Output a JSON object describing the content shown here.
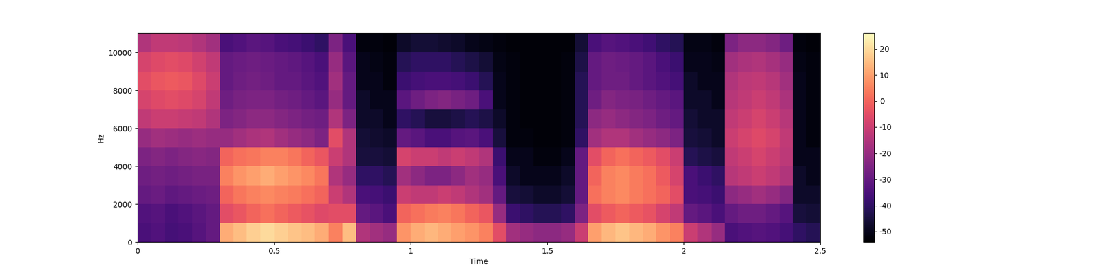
{
  "chart_data": {
    "type": "spectrogram",
    "x_label": "Time",
    "y_label": "Hz",
    "xlim": [
      0,
      2.5
    ],
    "xticks": [
      0,
      0.5,
      1,
      1.5,
      2,
      2.5
    ],
    "ylim": [
      0,
      11025
    ],
    "yticks": [
      0,
      2000,
      4000,
      6000,
      8000,
      10000
    ],
    "time_edges": [
      0,
      0.05,
      0.1,
      0.15,
      0.2,
      0.25,
      0.3,
      0.35,
      0.4,
      0.45,
      0.5,
      0.55,
      0.6,
      0.65,
      0.7,
      0.75,
      0.8,
      0.85,
      0.9,
      0.95,
      1,
      1.05,
      1.1,
      1.15,
      1.2,
      1.25,
      1.3,
      1.35,
      1.4,
      1.45,
      1.5,
      1.55,
      1.6,
      1.65,
      1.7,
      1.75,
      1.8,
      1.85,
      1.9,
      1.95,
      2,
      2.05,
      2.1,
      2.15,
      2.2,
      2.25,
      2.3,
      2.35,
      2.4,
      2.45,
      2.5
    ],
    "freq_edges": [
      0,
      1000,
      2000,
      3000,
      4000,
      5000,
      6000,
      7000,
      8000,
      9000,
      10000,
      11025
    ],
    "cells": [
      [
        -35,
        -34,
        -36,
        -35,
        -33,
        -30,
        12,
        15,
        18,
        20,
        18,
        16,
        15,
        12,
        5,
        15,
        -15,
        -18,
        -20,
        8,
        12,
        14,
        12,
        10,
        8,
        5,
        -5,
        -18,
        -20,
        -22,
        -22,
        -20,
        -10,
        10,
        14,
        16,
        14,
        12,
        8,
        5,
        -10,
        -15,
        -20,
        -35,
        -34,
        -33,
        -34,
        -36,
        -40,
        -42
      ],
      [
        -34,
        -33,
        -35,
        -34,
        -32,
        -30,
        -5,
        -3,
        0,
        2,
        0,
        -2,
        -4,
        -6,
        -5,
        -5,
        -30,
        -32,
        -35,
        0,
        2,
        4,
        5,
        3,
        0,
        -3,
        -20,
        -38,
        -40,
        -42,
        -42,
        -40,
        -25,
        -5,
        -2,
        0,
        -2,
        -4,
        -8,
        -12,
        -30,
        -32,
        -35,
        -30,
        -28,
        -28,
        -30,
        -33,
        -45,
        -46
      ],
      [
        -30,
        -29,
        -31,
        -30,
        -29,
        -28,
        0,
        3,
        5,
        6,
        5,
        4,
        2,
        0,
        -10,
        -15,
        -35,
        -36,
        -38,
        -10,
        -12,
        -12,
        -10,
        -12,
        -15,
        -18,
        -30,
        -45,
        -46,
        -48,
        -48,
        -46,
        -30,
        2,
        5,
        6,
        4,
        2,
        0,
        -5,
        -35,
        -36,
        -38,
        -22,
        -20,
        -18,
        -20,
        -24,
        -48,
        -48
      ],
      [
        -28,
        -27,
        -28,
        -27,
        -26,
        -26,
        5,
        8,
        10,
        12,
        10,
        8,
        6,
        3,
        -15,
        -20,
        -40,
        -40,
        -42,
        -18,
        -22,
        -25,
        -25,
        -22,
        -18,
        -20,
        -35,
        -48,
        -50,
        -50,
        -50,
        -48,
        -30,
        0,
        5,
        6,
        4,
        2,
        -2,
        -8,
        -35,
        -38,
        -40,
        -14,
        -12,
        -10,
        -12,
        -15,
        -48,
        -50
      ],
      [
        -25,
        -24,
        -25,
        -24,
        -23,
        -24,
        0,
        2,
        3,
        5,
        5,
        3,
        0,
        -3,
        -10,
        -15,
        -45,
        -45,
        -46,
        -8,
        -10,
        -10,
        -12,
        -10,
        -12,
        -15,
        -38,
        -50,
        -50,
        -52,
        -52,
        -50,
        -30,
        -5,
        0,
        2,
        0,
        -2,
        -5,
        -10,
        -42,
        -44,
        -45,
        -12,
        -10,
        -8,
        -10,
        -13,
        -50,
        -50
      ],
      [
        -20,
        -18,
        -19,
        -20,
        -19,
        -20,
        -20,
        -18,
        -16,
        -15,
        -18,
        -20,
        -22,
        -25,
        -5,
        -15,
        -46,
        -47,
        -48,
        -30,
        -32,
        -35,
        -35,
        -33,
        -32,
        -35,
        -45,
        -52,
        -52,
        -53,
        -53,
        -52,
        -40,
        -18,
        -15,
        -15,
        -18,
        -20,
        -22,
        -25,
        -45,
        -46,
        -48,
        -10,
        -8,
        -6,
        -8,
        -12,
        -50,
        -52
      ],
      [
        -12,
        -10,
        -10,
        -11,
        -12,
        -15,
        -25,
        -24,
        -22,
        -22,
        -24,
        -25,
        -27,
        -28,
        -15,
        -25,
        -48,
        -48,
        -50,
        -40,
        -42,
        -45,
        -45,
        -44,
        -42,
        -44,
        -48,
        -52,
        -53,
        -53,
        -53,
        -52,
        -42,
        -22,
        -20,
        -22,
        -24,
        -25,
        -28,
        -30,
        -46,
        -48,
        -48,
        -12,
        -10,
        -8,
        -10,
        -14,
        -50,
        -52
      ],
      [
        -8,
        -6,
        -5,
        -6,
        -8,
        -12,
        -28,
        -26,
        -25,
        -25,
        -27,
        -28,
        -30,
        -32,
        -20,
        -30,
        -48,
        -50,
        -50,
        -32,
        -28,
        -25,
        -24,
        -26,
        -28,
        -35,
        -50,
        -52,
        -53,
        -53,
        -53,
        -52,
        -42,
        -28,
        -24,
        -25,
        -26,
        -28,
        -30,
        -32,
        -48,
        -48,
        -50,
        -14,
        -12,
        -10,
        -12,
        -16,
        -50,
        -52
      ],
      [
        -5,
        -3,
        -2,
        -3,
        -6,
        -10,
        -30,
        -28,
        -27,
        -28,
        -30,
        -30,
        -32,
        -34,
        -18,
        -30,
        -50,
        -50,
        -52,
        -38,
        -36,
        -35,
        -35,
        -36,
        -38,
        -42,
        -50,
        -52,
        -53,
        -53,
        -53,
        -52,
        -42,
        -30,
        -28,
        -28,
        -30,
        -32,
        -34,
        -36,
        -48,
        -50,
        -50,
        -15,
        -13,
        -12,
        -14,
        -18,
        -50,
        -52
      ],
      [
        -8,
        -6,
        -5,
        -6,
        -9,
        -12,
        -30,
        -29,
        -28,
        -29,
        -30,
        -31,
        -33,
        -35,
        -20,
        -32,
        -50,
        -51,
        -52,
        -42,
        -40,
        -40,
        -40,
        -42,
        -44,
        -46,
        -51,
        -52,
        -53,
        -53,
        -53,
        -52,
        -44,
        -30,
        -28,
        -29,
        -30,
        -32,
        -35,
        -38,
        -50,
        -50,
        -51,
        -18,
        -16,
        -15,
        -17,
        -20,
        -51,
        -52
      ],
      [
        -15,
        -12,
        -12,
        -13,
        -15,
        -18,
        -35,
        -34,
        -32,
        -33,
        -35,
        -36,
        -38,
        -40,
        -25,
        -35,
        -52,
        -52,
        -53,
        -48,
        -46,
        -46,
        -47,
        -48,
        -50,
        -51,
        -52,
        -53,
        -53,
        -53,
        -53,
        -53,
        -46,
        -35,
        -33,
        -34,
        -35,
        -37,
        -40,
        -42,
        -51,
        -51,
        -52,
        -25,
        -22,
        -22,
        -24,
        -28,
        -52,
        -53
      ]
    ],
    "clim": [
      -54,
      26
    ],
    "colorbar_ticks": [
      -50,
      -40,
      -30,
      -20,
      -10,
      0,
      10,
      20
    ]
  }
}
